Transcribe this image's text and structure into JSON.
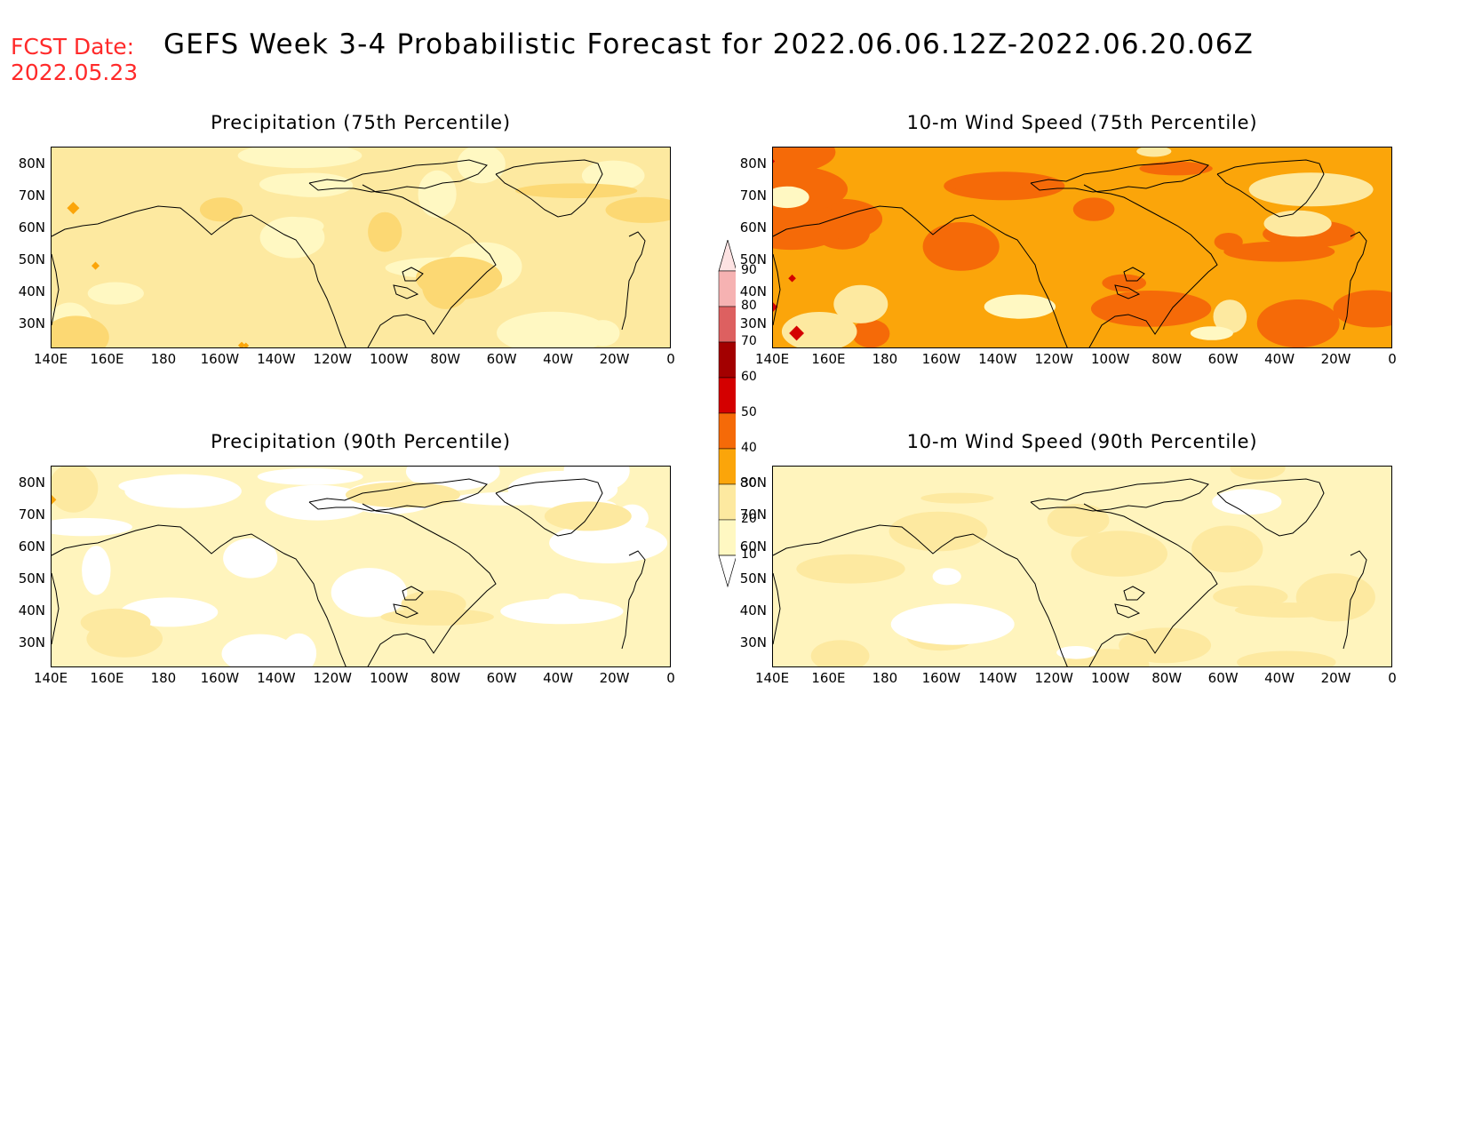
{
  "header": {
    "fcst_label": "FCST Date:",
    "fcst_date": "2022.05.23",
    "title": "GEFS Week 3-4 Probabilistic Forecast for 2022.06.06.12Z-2022.06.20.06Z"
  },
  "panels": [
    {
      "id": "precip75",
      "title": "Precipitation (75th Percentile)",
      "base": "#fde9a0",
      "patches": [
        [
          "#fff8c2",
          0.25
        ],
        [
          "#fcd873",
          0.12
        ]
      ],
      "white_patches": 0.02,
      "orange_spots": 12
    },
    {
      "id": "wind75",
      "title": "10-m Wind Speed (75th Percentile)",
      "base": "#fba50a",
      "patches": [
        [
          "#f56a08",
          0.3
        ],
        [
          "#fde9a0",
          0.1
        ],
        [
          "#fff8c2",
          0.05
        ]
      ],
      "white_patches": 0.0,
      "orange_spots": 20
    },
    {
      "id": "precip90",
      "title": "Precipitation (90th Percentile)",
      "base": "#fff4bd",
      "patches": [
        [
          "#ffffff",
          0.35
        ],
        [
          "#fde9a0",
          0.12
        ]
      ],
      "white_patches": 0.0,
      "orange_spots": 1
    },
    {
      "id": "wind90",
      "title": "10-m Wind Speed (90th Percentile)",
      "base": "#fff4bd",
      "patches": [
        [
          "#fde9a0",
          0.25
        ],
        [
          "#ffffff",
          0.06
        ]
      ],
      "white_patches": 0.0,
      "orange_spots": 6
    }
  ],
  "lat_labels": [
    "80N",
    "70N",
    "60N",
    "50N",
    "40N",
    "30N"
  ],
  "lon_labels": [
    "140E",
    "160E",
    "180",
    "160W",
    "140W",
    "120W",
    "100W",
    "80W",
    "60W",
    "40W",
    "20W",
    "0"
  ],
  "colorbar": {
    "levels": [
      "90",
      "80",
      "70",
      "60",
      "50",
      "40",
      "30",
      "20",
      "10"
    ],
    "colors": [
      "#f6b2b2",
      "#dd6060",
      "#a30000",
      "#d40000",
      "#f56a08",
      "#fba50a",
      "#fde9a0",
      "#fff8c2"
    ]
  }
}
